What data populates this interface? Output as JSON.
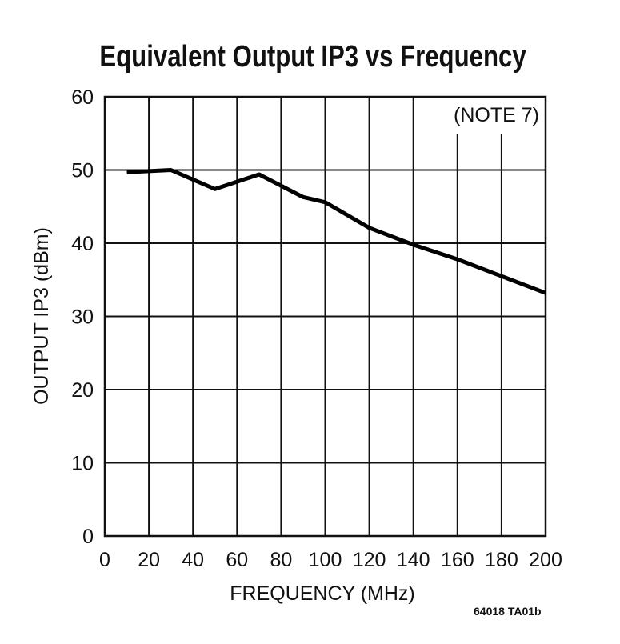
{
  "chart_data": {
    "type": "line",
    "title": "Equivalent Output IP3 vs Frequency",
    "xlabel": "FREQUENCY (MHz)",
    "ylabel": "OUTPUT IP3 (dBm)",
    "xlim": [
      0,
      200
    ],
    "ylim": [
      0,
      60
    ],
    "xticks": [
      0,
      20,
      40,
      60,
      80,
      100,
      120,
      140,
      160,
      180,
      200
    ],
    "yticks": [
      0,
      10,
      20,
      30,
      40,
      50,
      60
    ],
    "grid": true,
    "annotation": "(NOTE 7)",
    "series": [
      {
        "x": [
          10,
          30,
          50,
          70,
          90,
          100,
          120,
          140,
          160,
          180,
          200
        ],
        "y": [
          49.7,
          50.0,
          47.4,
          49.4,
          46.3,
          45.6,
          42.1,
          39.8,
          37.8,
          35.5,
          33.2
        ]
      }
    ]
  },
  "figure_code": "64018 TA01b"
}
